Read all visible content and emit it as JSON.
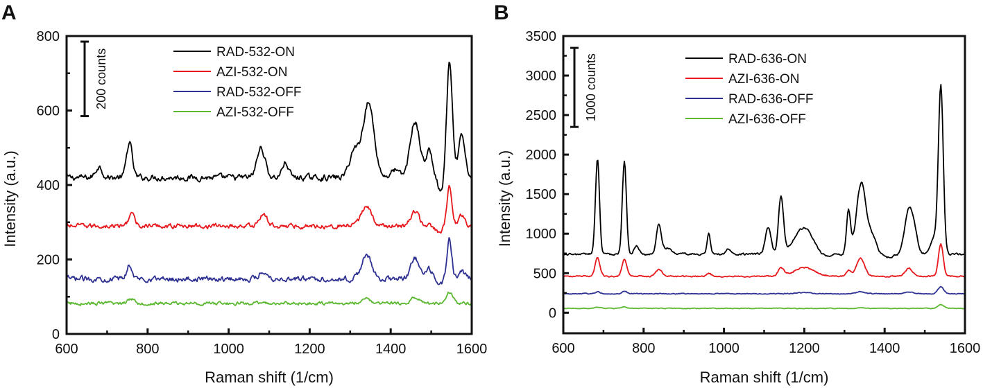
{
  "figure": {
    "panels": [
      "A",
      "B"
    ]
  },
  "chart_data": [
    {
      "panel": "A",
      "type": "line",
      "title": "",
      "xlabel": "Raman shift (1/cm)",
      "ylabel": "Intensity (a.u.)",
      "xlim": [
        600,
        1600
      ],
      "ylim": [
        0,
        800
      ],
      "xticks": [
        600,
        800,
        1000,
        1200,
        1400,
        1600
      ],
      "yticks": [
        0,
        200,
        400,
        600,
        800
      ],
      "grid": false,
      "legend_position": "top-center",
      "scale_bar": {
        "label": "200 counts",
        "value": 200,
        "from": 585,
        "to": 785
      },
      "series": [
        {
          "name": "RAD-532-ON",
          "color": "#000000",
          "baseline": 420,
          "noise": 9,
          "peaks": [
            [
              680,
              30,
              8
            ],
            [
              755,
              95,
              7
            ],
            [
              1080,
              80,
              10
            ],
            [
              1140,
              40,
              8
            ],
            [
              1310,
              70,
              12
            ],
            [
              1345,
              200,
              14
            ],
            [
              1460,
              150,
              12
            ],
            [
              1495,
              70,
              8
            ],
            [
              1545,
              310,
              7
            ],
            [
              1575,
              110,
              8
            ]
          ],
          "dips": [
            [
              1410,
              20,
              10
            ],
            [
              1525,
              -40,
              8
            ]
          ]
        },
        {
          "name": "AZI-532-ON",
          "color": "#e8171b",
          "baseline": 290,
          "noise": 7,
          "peaks": [
            [
              760,
              35,
              7
            ],
            [
              1085,
              30,
              10
            ],
            [
              1340,
              55,
              12
            ],
            [
              1460,
              40,
              10
            ],
            [
              1545,
              105,
              6
            ],
            [
              1575,
              30,
              8
            ]
          ],
          "dips": [
            [
              1520,
              -20,
              8
            ]
          ]
        },
        {
          "name": "RAD-532-OFF",
          "color": "#2e3192",
          "baseline": 148,
          "noise": 8,
          "peaks": [
            [
              755,
              40,
              6
            ],
            [
              1085,
              20,
              10
            ],
            [
              1340,
              65,
              12
            ],
            [
              1460,
              55,
              10
            ],
            [
              1495,
              25,
              8
            ],
            [
              1545,
              105,
              6
            ],
            [
              1575,
              20,
              8
            ]
          ],
          "dips": [
            [
              1520,
              -15,
              8
            ]
          ]
        },
        {
          "name": "AZI-532-OFF",
          "color": "#5bb830",
          "baseline": 82,
          "noise": 5,
          "peaks": [
            [
              760,
              14,
              8
            ],
            [
              1340,
              10,
              15
            ],
            [
              1460,
              15,
              10
            ],
            [
              1545,
              30,
              8
            ]
          ],
          "dips": []
        }
      ]
    },
    {
      "panel": "B",
      "type": "line",
      "title": "",
      "xlabel": "Raman shift (1/cm)",
      "ylabel": "Intensity (a.u.)",
      "xlim": [
        600,
        1600
      ],
      "ylim": [
        -260,
        3500
      ],
      "xticks": [
        600,
        800,
        1000,
        1200,
        1400,
        1600
      ],
      "yticks": [
        0,
        500,
        1000,
        1500,
        2000,
        2500,
        3000,
        3500
      ],
      "grid": false,
      "legend_position": "top-center",
      "scale_bar": {
        "label": "1000 counts",
        "value": 1000,
        "from": 2350,
        "to": 3350
      },
      "series": [
        {
          "name": "RAD-636-ON",
          "color": "#000000",
          "baseline": 740,
          "noise": 14,
          "peaks": [
            [
              685,
              1200,
              5
            ],
            [
              752,
              1180,
              5
            ],
            [
              782,
              100,
              6
            ],
            [
              838,
              380,
              6
            ],
            [
              860,
              80,
              10
            ],
            [
              962,
              260,
              4
            ],
            [
              1010,
              60,
              6
            ],
            [
              1110,
              340,
              7
            ],
            [
              1142,
              720,
              6
            ],
            [
              1200,
              340,
              25
            ],
            [
              1310,
              540,
              5
            ],
            [
              1342,
              900,
              12
            ],
            [
              1370,
              200,
              10
            ],
            [
              1460,
              550,
              10
            ],
            [
              1475,
              200,
              8
            ],
            [
              1540,
              2080,
              6
            ],
            [
              1525,
              200,
              10
            ]
          ],
          "dips": [
            [
              1240,
              -60,
              20
            ],
            [
              1410,
              -40,
              12
            ]
          ]
        },
        {
          "name": "AZI-636-ON",
          "color": "#e8171b",
          "baseline": 460,
          "noise": 10,
          "peaks": [
            [
              685,
              230,
              6
            ],
            [
              752,
              220,
              6
            ],
            [
              838,
              90,
              8
            ],
            [
              962,
              40,
              6
            ],
            [
              1142,
              100,
              7
            ],
            [
              1200,
              110,
              25
            ],
            [
              1310,
              80,
              6
            ],
            [
              1340,
              230,
              10
            ],
            [
              1460,
              100,
              10
            ],
            [
              1540,
              410,
              6
            ]
          ],
          "dips": []
        },
        {
          "name": "RAD-636-OFF",
          "color": "#2e3192",
          "baseline": 240,
          "noise": 6,
          "peaks": [
            [
              685,
              25,
              6
            ],
            [
              752,
              35,
              6
            ],
            [
              1200,
              15,
              20
            ],
            [
              1340,
              25,
              10
            ],
            [
              1460,
              20,
              10
            ],
            [
              1540,
              90,
              7
            ]
          ],
          "dips": []
        },
        {
          "name": "AZI-636-OFF",
          "color": "#5bb830",
          "baseline": 55,
          "noise": 5,
          "peaks": [
            [
              685,
              15,
              8
            ],
            [
              752,
              15,
              8
            ],
            [
              1340,
              10,
              10
            ],
            [
              1540,
              45,
              8
            ]
          ],
          "dips": []
        }
      ]
    }
  ]
}
